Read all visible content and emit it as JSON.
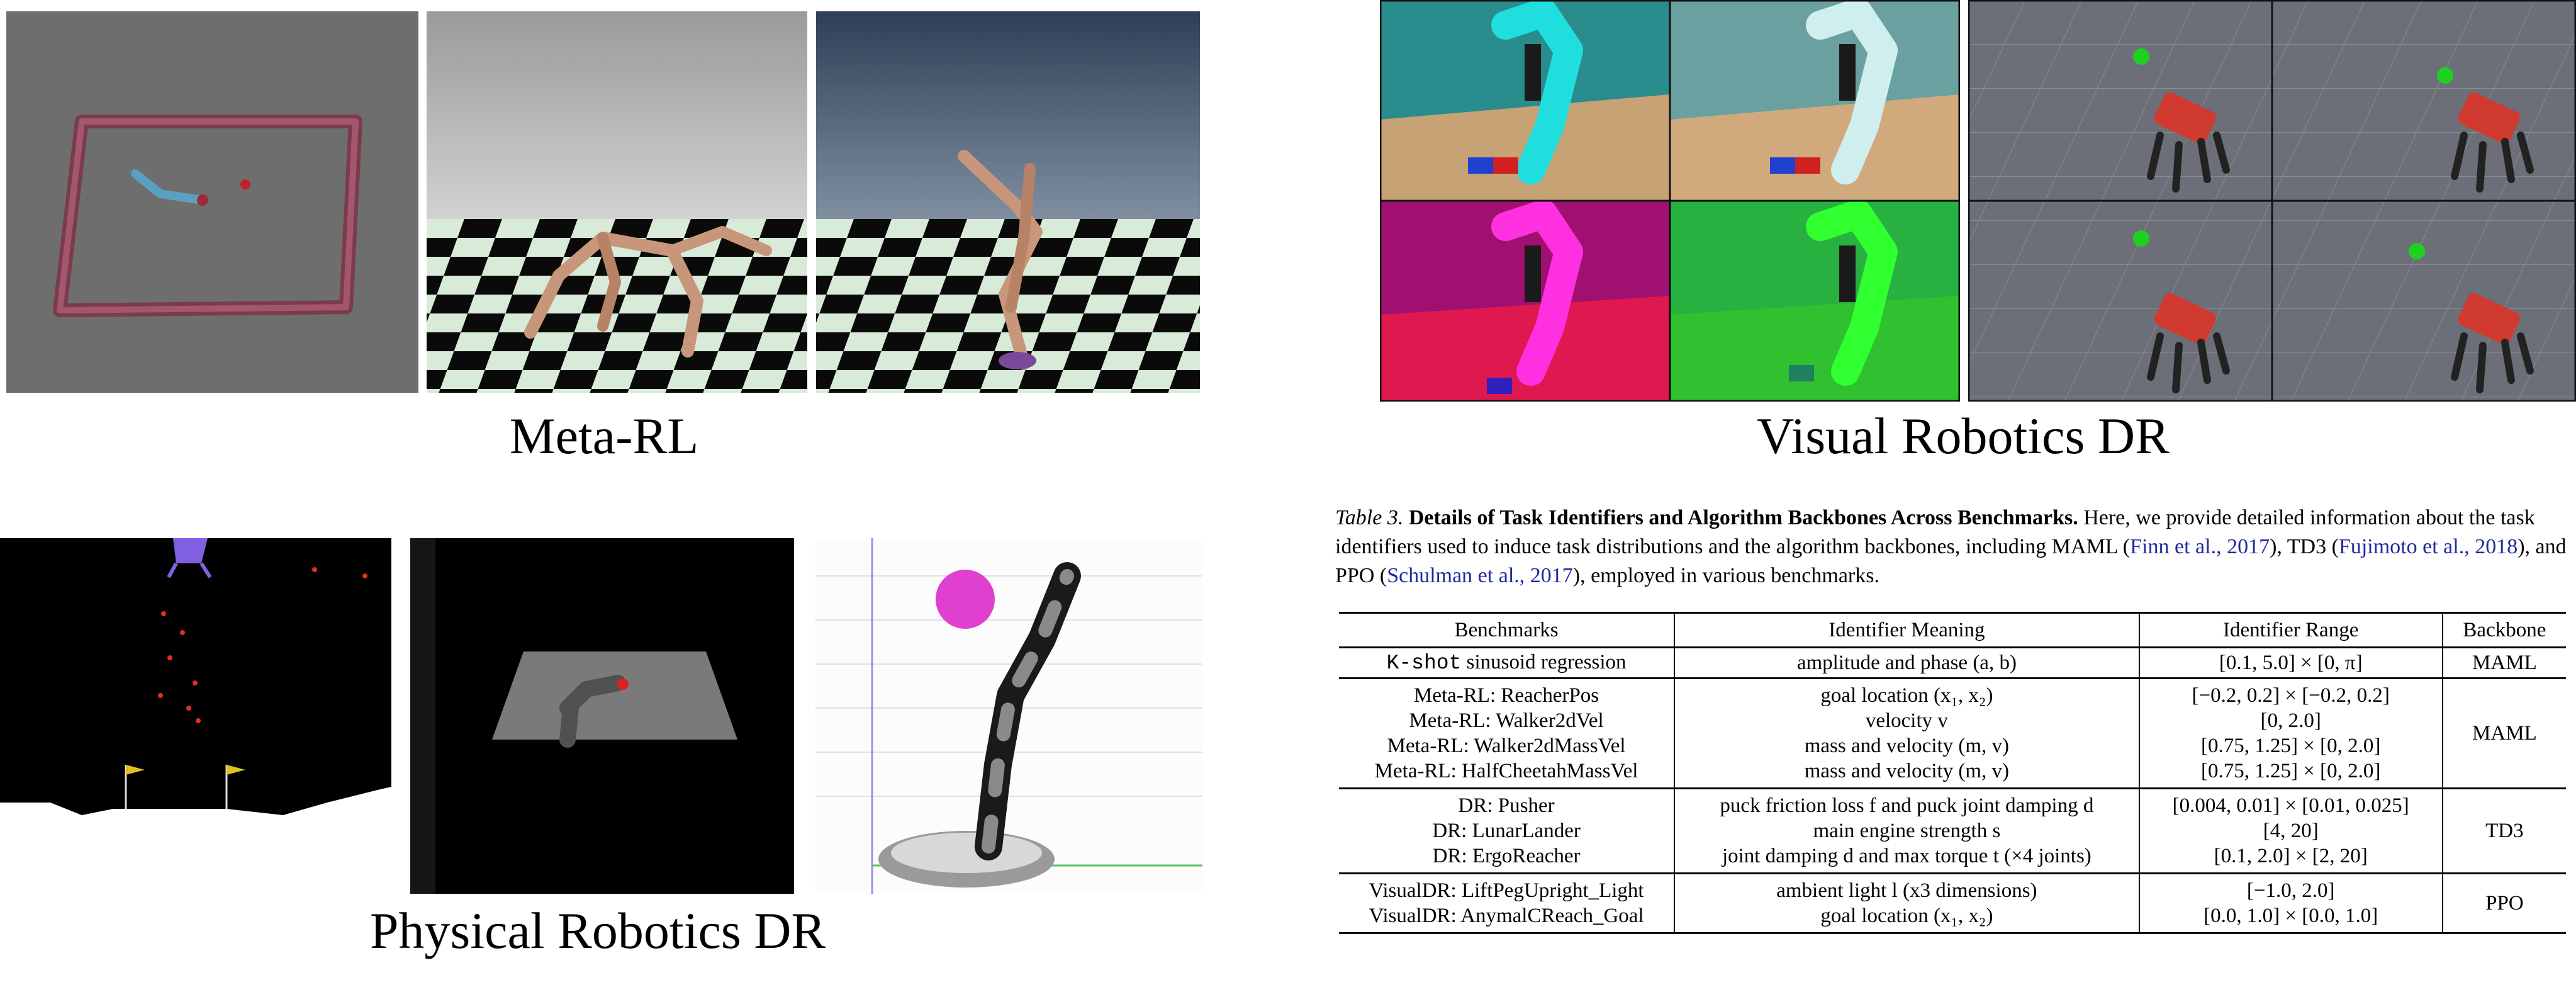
{
  "captions": {
    "meta_rl": "Meta-RL",
    "visual_dr": "Visual Robotics DR",
    "physical_dr": "Physical Robotics DR"
  },
  "table_caption": {
    "label": "Table 3.",
    "title": "Details of Task Identifiers and Algorithm Backbones Across Benchmarks.",
    "text_1": "Here, we provide detailed information about the task identifiers used to induce task distributions and the algorithm backbones, including MAML (",
    "cite_maml": "Finn et al., 2017",
    "text_2": "), TD3 (",
    "cite_td3": "Fujimoto et al., 2018",
    "text_3": "), and PPO (",
    "cite_ppo": "Schulman et al., 2017",
    "text_4": "), employed in various benchmarks."
  },
  "table": {
    "headers": [
      "Benchmarks",
      "Identifier Meaning",
      "Identifier Range",
      "Backbone"
    ],
    "row_kshot": {
      "bench_mono": "K-shot",
      "bench_rest": " sinusoid regression",
      "meaning": "amplitude and phase (a, b)",
      "range": "[0.1, 5.0] × [0, π]",
      "backbone": "MAML"
    },
    "group_metarl": {
      "benchmarks": "Meta-RL: ReacherPos\nMeta-RL: Walker2dVel\nMeta-RL: Walker2dMassVel\nMeta-RL: HalfCheetahMassVel",
      "meanings": "goal location (x₁, x₂)\nvelocity v\nmass and velocity (m, v)\nmass and velocity (m, v)",
      "ranges": "[−0.2, 0.2] × [−0.2, 0.2]\n[0, 2.0]\n[0.75, 1.25] × [0, 2.0]\n[0.75, 1.25] × [0, 2.0]",
      "backbone": "MAML"
    },
    "group_dr": {
      "benchmarks": "DR: Pusher\nDR: LunarLander\nDR: ErgoReacher",
      "meanings": "puck friction loss f and puck joint damping d\nmain engine strength s\njoint damping d and max torque t (×4 joints)",
      "ranges": "[0.004, 0.01] × [0.01, 0.025]\n[4, 20]\n[0.1, 2.0] × [2, 20]",
      "backbone": "TD3"
    },
    "group_visual": {
      "benchmarks": "VisualDR: LiftPegUpright_Light\nVisualDR: AnymalCReach_Goal",
      "meanings": "ambient light l (x3 dimensions)\ngoal location (x₁, x₂)",
      "ranges": "[−1.0, 2.0]\n[0.0, 1.0] × [0.0, 1.0]",
      "backbone": "PPO"
    }
  }
}
